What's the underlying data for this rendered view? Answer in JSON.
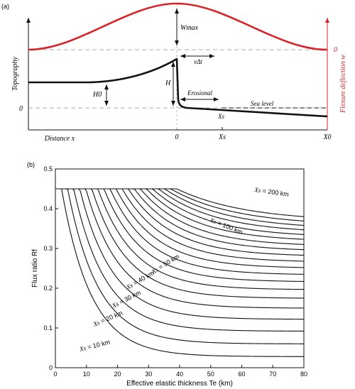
{
  "panel_a": {
    "label": "(a)",
    "y_axis_label": "Topography",
    "right_axis_label": "Flexure deflection w",
    "x_axis_label": "Distance x",
    "zero_left": "0",
    "zero_right": "0",
    "wmax": "Wmax",
    "vdt": "vΔt",
    "h0": "H0",
    "h": "H",
    "erosional": "Erosional",
    "sea_level": "Sea level",
    "xs_curve": "Xs",
    "tick_0": "0",
    "tick_xs": "Xs",
    "tick_x0": "X0",
    "colors": {
      "flexure": "#d8232a",
      "topography": "#111111",
      "dashed": "#aaaaaa"
    }
  },
  "panel_b": {
    "label": "(b)",
    "y_axis_label": "Flux ratio Rf",
    "x_axis_label": "Effective elastic thickness Te (km)"
  },
  "chart_data": {
    "type": "line",
    "xlim": [
      0,
      80
    ],
    "ylim": [
      0,
      0.5
    ],
    "xticks": [
      "0",
      "10",
      "20",
      "30",
      "40",
      "50",
      "60",
      "70",
      "80"
    ],
    "yticks": [
      "0",
      "0.1",
      "0.2",
      "0.3",
      "0.4",
      "0.5"
    ],
    "plateau": 0.45,
    "series_xs_km": [
      10,
      20,
      30,
      40,
      50,
      60,
      70,
      80,
      90,
      100,
      110,
      120,
      130,
      140,
      150,
      160,
      170,
      180,
      190,
      200
    ],
    "series_end_values": [
      0.028,
      0.06,
      0.092,
      0.122,
      0.15,
      0.175,
      0.197,
      0.217,
      0.235,
      0.252,
      0.268,
      0.283,
      0.297,
      0.31,
      0.323,
      0.335,
      0.347,
      0.358,
      0.369,
      0.38
    ],
    "annotations": [
      {
        "xs": "Xs",
        "text": " = 200 km"
      },
      {
        "xs": "Xs",
        "text": " = 100 km"
      },
      {
        "xs": "Xs",
        "text": " = 50 km"
      },
      {
        "xs": "Xs",
        "text": " = 40 km"
      },
      {
        "xs": "Xs",
        "text": " = 30 km"
      },
      {
        "xs": "Xs",
        "text": " = 20 km"
      },
      {
        "xs": "Xs",
        "text": " = 10 km"
      }
    ]
  }
}
